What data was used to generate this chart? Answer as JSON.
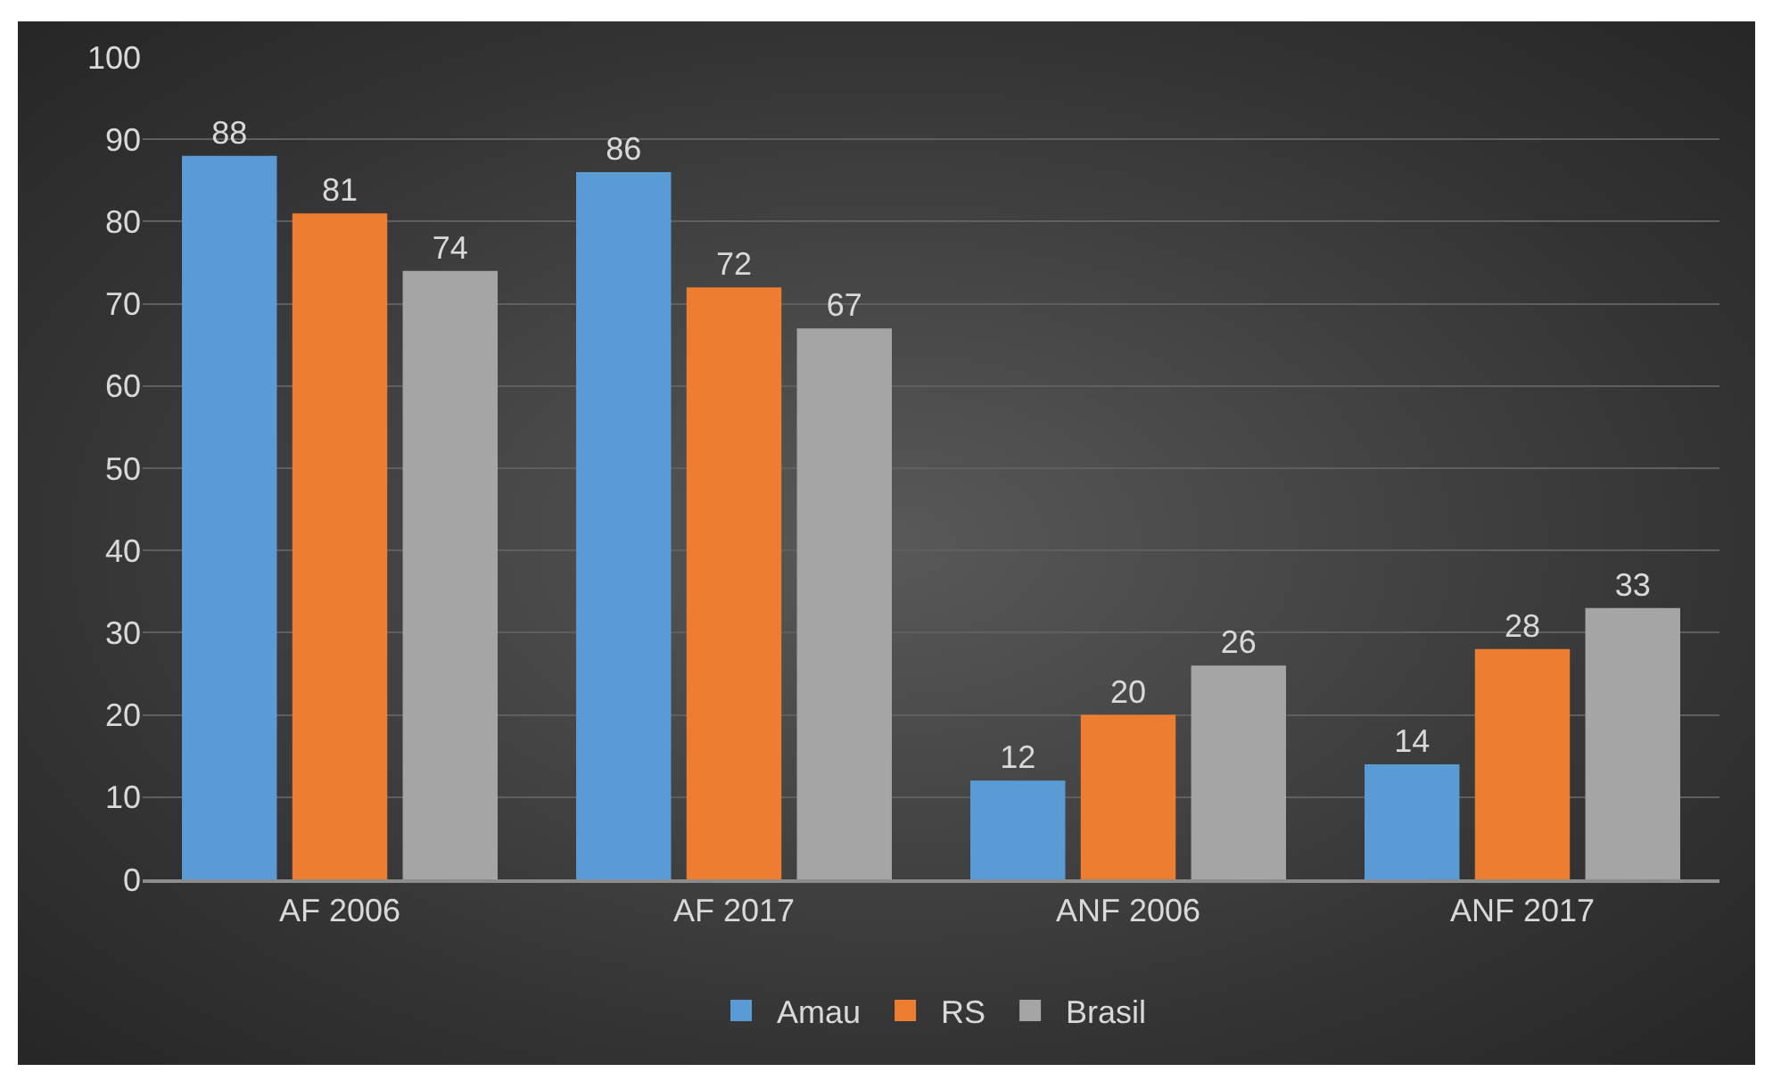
{
  "chart_data": {
    "type": "bar",
    "categories": [
      "AF 2006",
      "AF 2017",
      "ANF 2006",
      "ANF 2017"
    ],
    "series": [
      {
        "name": "Amau",
        "color": "#5b9bd5",
        "values": [
          88,
          86,
          12,
          14
        ]
      },
      {
        "name": "RS",
        "color": "#ed7d31",
        "values": [
          81,
          72,
          20,
          28
        ]
      },
      {
        "name": "Brasil",
        "color": "#a5a5a5",
        "values": [
          74,
          67,
          26,
          33
        ]
      }
    ],
    "ylim": [
      0,
      100
    ],
    "yticks": [
      0,
      10,
      20,
      30,
      40,
      50,
      60,
      70,
      80,
      90,
      100
    ],
    "grid": "y",
    "legend": "bottom",
    "data_labels": true
  }
}
